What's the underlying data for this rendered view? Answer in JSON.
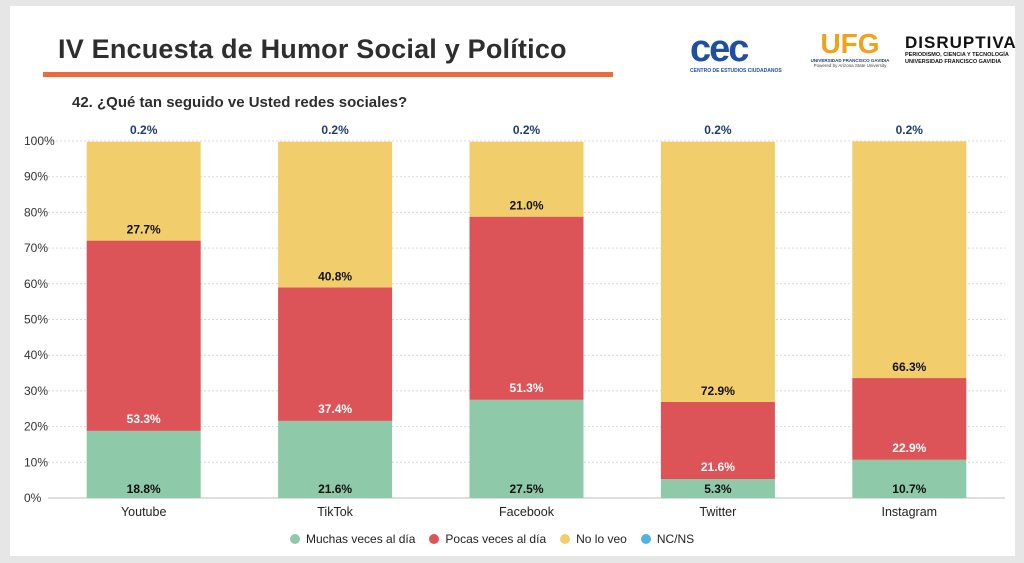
{
  "header": {
    "title": "IV Encuesta de Humor Social y Político",
    "question": "42. ¿Qué tan seguido ve Usted redes sociales?"
  },
  "logos": {
    "cec": {
      "text": "cec",
      "sub": "CENTRO DE ESTUDIOS CIUDADANOS"
    },
    "ufg": {
      "text": "UFG",
      "sub": "UNIVERSIDAD FRANCISCO GAVIDIA",
      "sub2": "Powered by Arizona State University"
    },
    "disruptiva": {
      "text": "DISRUPTIVA",
      "sub1": "PERIODISMO, CIENCIA Y TECNOLOGÍA",
      "sub2": "UNIVERSIDAD FRANCISCO GAVIDIA"
    }
  },
  "colors": {
    "muchas": "#8ecaa9",
    "pocas": "#dc5458",
    "no_lo_veo": "#f1cd6b",
    "nc_ns": "#4fb3e3"
  },
  "chart_data": {
    "type": "bar",
    "stacked": true,
    "categories": [
      "Youtube",
      "TikTok",
      "Facebook",
      "Twitter",
      "Instagram"
    ],
    "series": [
      {
        "name": "Muchas veces al día",
        "key": "muchas",
        "values": [
          18.8,
          21.6,
          27.5,
          5.3,
          10.7
        ],
        "labels": [
          "18.8%",
          "21.6%",
          "27.5%",
          "5.3%",
          "10.7%"
        ]
      },
      {
        "name": "Pocas veces al día",
        "key": "pocas",
        "values": [
          53.3,
          37.4,
          51.3,
          21.6,
          22.9
        ],
        "labels": [
          "53.3%",
          "37.4%",
          "51.3%",
          "21.6%",
          "22.9%"
        ]
      },
      {
        "name": "No lo veo",
        "key": "no_lo_veo",
        "values": [
          27.7,
          40.8,
          21.0,
          72.9,
          66.3
        ],
        "labels": [
          "27.7%",
          "40.8%",
          "21.0%",
          "72.9%",
          "66.3%"
        ]
      },
      {
        "name": "NC/NS",
        "key": "nc_ns",
        "values": [
          0.2,
          0.2,
          0.2,
          0.2,
          0.2
        ],
        "labels": [
          "0.2%",
          "0.2%",
          "0.2%",
          "0.2%",
          "0.2%"
        ]
      }
    ],
    "y_ticks": [
      "0%",
      "10%",
      "20%",
      "30%",
      "40%",
      "50%",
      "60%",
      "70%",
      "80%",
      "90%",
      "100%"
    ],
    "ylim": [
      0,
      100
    ],
    "grid": true,
    "legend_position": "bottom"
  }
}
